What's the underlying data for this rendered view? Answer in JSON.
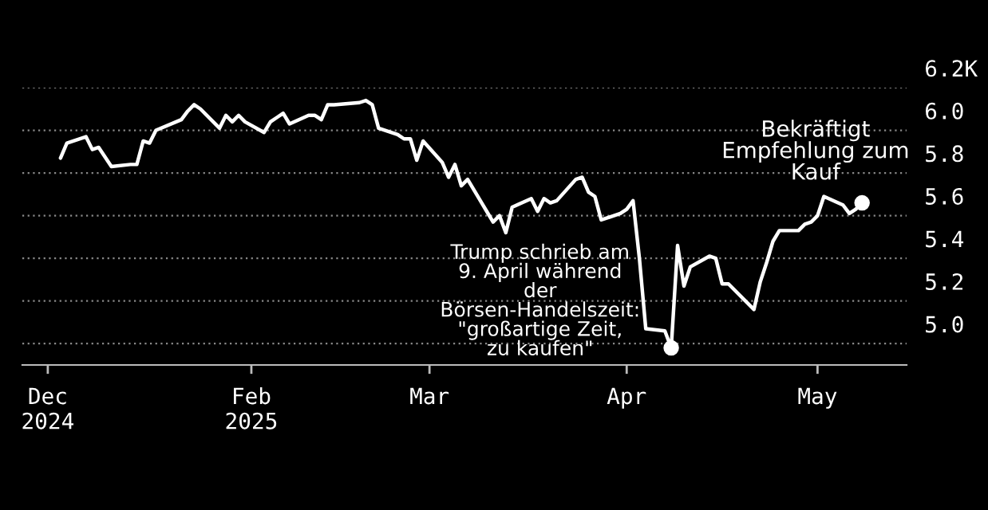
{
  "chart_data": {
    "type": "line",
    "x": [
      "2025-01-02",
      "2025-01-03",
      "2025-01-06",
      "2025-01-07",
      "2025-01-08",
      "2025-01-10",
      "2025-01-13",
      "2025-01-14",
      "2025-01-15",
      "2025-01-16",
      "2025-01-17",
      "2025-01-21",
      "2025-01-22",
      "2025-01-23",
      "2025-01-24",
      "2025-01-27",
      "2025-01-28",
      "2025-01-29",
      "2025-01-30",
      "2025-01-31",
      "2025-02-03",
      "2025-02-04",
      "2025-02-05",
      "2025-02-06",
      "2025-02-07",
      "2025-02-10",
      "2025-02-11",
      "2025-02-12",
      "2025-02-13",
      "2025-02-14",
      "2025-02-18",
      "2025-02-19",
      "2025-02-20",
      "2025-02-21",
      "2025-02-24",
      "2025-02-25",
      "2025-02-26",
      "2025-02-27",
      "2025-02-28",
      "2025-03-03",
      "2025-03-04",
      "2025-03-05",
      "2025-03-06",
      "2025-03-07",
      "2025-03-10",
      "2025-03-11",
      "2025-03-12",
      "2025-03-13",
      "2025-03-14",
      "2025-03-17",
      "2025-03-18",
      "2025-03-19",
      "2025-03-20",
      "2025-03-21",
      "2025-03-24",
      "2025-03-25",
      "2025-03-26",
      "2025-03-27",
      "2025-03-28",
      "2025-03-31",
      "2025-04-01",
      "2025-04-02",
      "2025-04-03",
      "2025-04-04",
      "2025-04-07",
      "2025-04-08",
      "2025-04-09",
      "2025-04-10",
      "2025-04-11",
      "2025-04-14",
      "2025-04-15",
      "2025-04-16",
      "2025-04-17",
      "2025-04-21",
      "2025-04-22",
      "2025-04-23",
      "2025-04-24",
      "2025-04-25",
      "2025-04-28",
      "2025-04-29",
      "2025-04-30",
      "2025-05-01",
      "2025-05-02",
      "2025-05-05",
      "2025-05-06",
      "2025-05-07",
      "2025-05-08"
    ],
    "series": [
      {
        "color": "#ffffff",
        "values": [
          5.87,
          5.94,
          5.97,
          5.91,
          5.92,
          5.83,
          5.84,
          5.84,
          5.95,
          5.94,
          6.0,
          6.05,
          6.09,
          6.12,
          6.1,
          6.01,
          6.07,
          6.04,
          6.07,
          6.04,
          5.99,
          6.04,
          6.06,
          6.08,
          6.03,
          6.07,
          6.07,
          6.05,
          6.12,
          6.12,
          6.13,
          6.14,
          6.12,
          6.01,
          5.98,
          5.96,
          5.96,
          5.86,
          5.95,
          5.85,
          5.78,
          5.84,
          5.74,
          5.77,
          5.62,
          5.57,
          5.6,
          5.52,
          5.64,
          5.68,
          5.62,
          5.68,
          5.66,
          5.67,
          5.77,
          5.78,
          5.71,
          5.69,
          5.58,
          5.61,
          5.63,
          5.67,
          5.4,
          5.07,
          5.06,
          4.98,
          5.46,
          5.27,
          5.36,
          5.41,
          5.4,
          5.28,
          5.28,
          5.16,
          5.29,
          5.38,
          5.48,
          5.53,
          5.53,
          5.56,
          5.57,
          5.6,
          5.69,
          5.65,
          5.61,
          5.63,
          5.66
        ]
      }
    ],
    "xlim": [
      "2024-12-27",
      "2025-05-15"
    ],
    "xticks": [
      {
        "value": "2024-12-31",
        "label": "Dec\n2024"
      },
      {
        "value": "2025-02-01",
        "label": "Feb\n2025"
      },
      {
        "value": "2025-03-01",
        "label": "Mar"
      },
      {
        "value": "2025-04-01",
        "label": "Apr"
      },
      {
        "value": "2025-05-01",
        "label": "May"
      }
    ],
    "ylim": [
      4.9,
      6.2
    ],
    "yticks": [
      {
        "value": 5,
        "label": "5.0"
      },
      5.2,
      5.4,
      5.6,
      5.8,
      {
        "value": 6,
        "label": "6.0"
      },
      {
        "value": 6.2,
        "label": "6.2K"
      }
    ],
    "grid": "y",
    "annotations": [
      {
        "text": "Trump schrieb am\n9. April während\nder\nBörsen-Handelszeit:\n\"großartige Zeit,\nzu kaufen\"",
        "x": "2025-04-08",
        "y": 4.98
      },
      {
        "text": "Bekräftigt\nEmpfehlung zum\nKauf",
        "x": "2025-05-08",
        "y": 5.66
      }
    ]
  }
}
